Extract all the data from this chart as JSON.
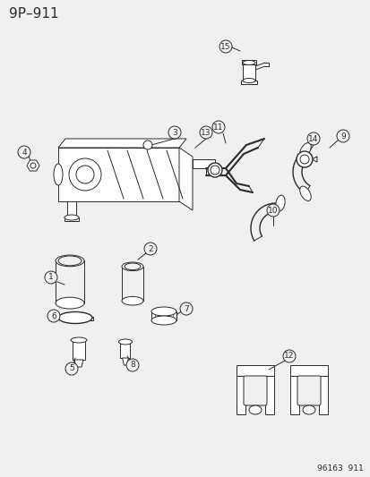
{
  "title": "9P–911",
  "footer": "96163  911",
  "bg_color": "#f0f0f0",
  "line_color": "#2a2a2a",
  "title_fontsize": 11,
  "footer_fontsize": 6.5,
  "label_fontsize": 7
}
